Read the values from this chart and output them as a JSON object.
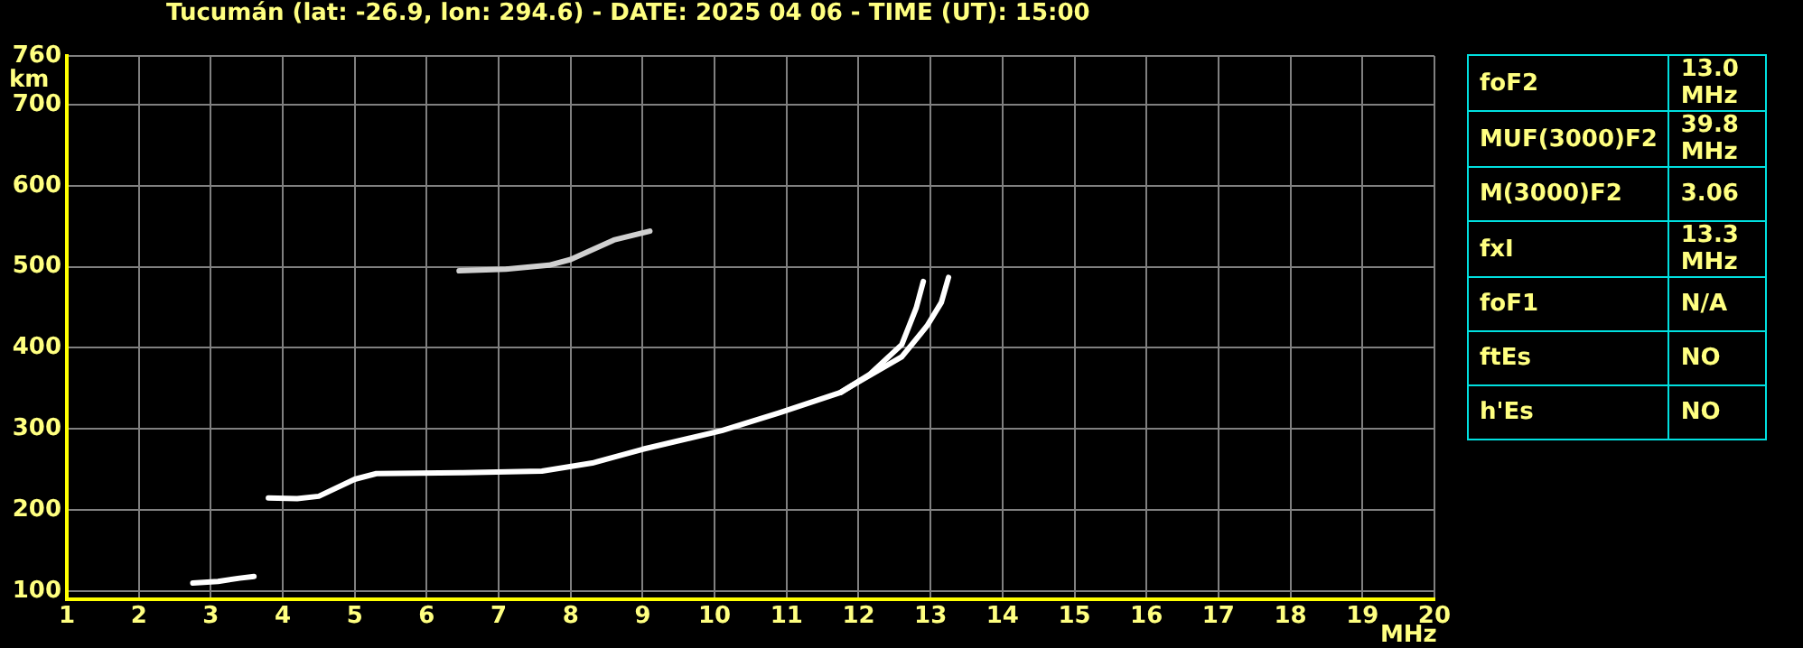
{
  "chart_data": [
    {
      "type": "line",
      "title": "Tucumán (lat: -26.9, lon: 294.6) - DATE: 2025 04 06 - TIME (UT): 15:00",
      "xlabel": "MHz",
      "ylabel": "km",
      "xlim": [
        1,
        20
      ],
      "xticks": [
        1,
        2,
        3,
        4,
        5,
        6,
        7,
        8,
        9,
        10,
        11,
        12,
        13,
        14,
        15,
        16,
        17,
        18,
        19,
        20
      ],
      "ylim": [
        90,
        760
      ],
      "yticks": [
        100,
        200,
        300,
        400,
        500,
        600,
        700,
        760
      ],
      "grid": true,
      "marker": "none",
      "line_style": "solid",
      "series": [
        {
          "color": "#ffffff",
          "x": [
            2.75,
            3.1,
            3.4,
            3.6
          ],
          "values": [
            110,
            112,
            116,
            118
          ]
        },
        {
          "color": "#ffffff",
          "x": [
            3.8,
            4.2,
            4.5,
            5.0,
            5.3,
            6.5,
            7.6,
            8.3,
            9.0,
            10.1,
            10.9,
            11.75,
            12.15,
            12.6,
            12.8,
            12.9
          ],
          "values": [
            215,
            214,
            217,
            238,
            245,
            246,
            248,
            258,
            275,
            298,
            320,
            345,
            367,
            404,
            449,
            482
          ]
        },
        {
          "color": "#ffffff",
          "x": [
            11.75,
            11.9,
            12.6,
            12.95,
            13.15,
            13.25
          ],
          "values": [
            345,
            353,
            389,
            427,
            456,
            487
          ]
        },
        {
          "color": "#d0d0d0",
          "x": [
            6.45,
            7.1,
            7.7,
            8.0,
            8.6,
            9.1
          ],
          "values": [
            495,
            497,
            502,
            509,
            533,
            544
          ]
        }
      ]
    },
    {
      "type": "other",
      "categories": [
        "foF2",
        "MUF(3000)F2",
        "M(3000)F2",
        "fxI",
        "foF1",
        "ftEs",
        "h'Es"
      ],
      "value_labels": [
        "13.0 MHz",
        "39.8 MHz",
        "3.06",
        "13.3 MHz",
        "N/A",
        "NO",
        "NO"
      ]
    }
  ]
}
